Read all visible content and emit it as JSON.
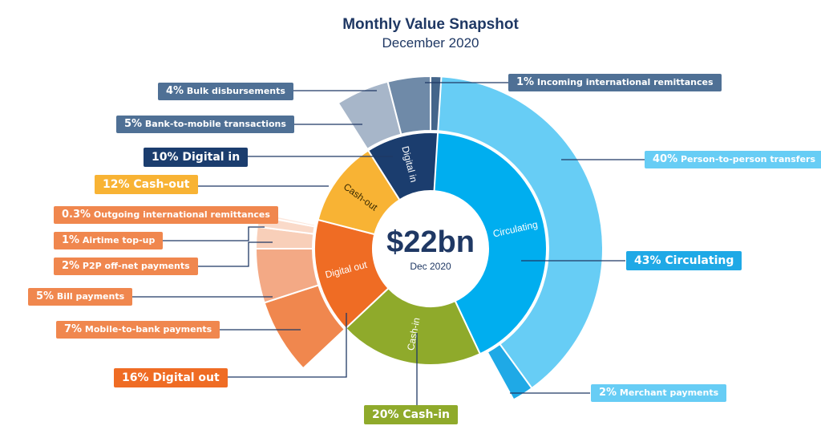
{
  "title": "Monthly Value Snapshot",
  "subtitle": "December 2020",
  "center": {
    "value": "$22bn",
    "caption": "Dec 2020"
  },
  "chart_data": {
    "type": "sunburst",
    "total_label": "$22bn",
    "inner": [
      {
        "name": "Circulating",
        "pct": 43,
        "label": "43% Circulating",
        "color": "#00aeef"
      },
      {
        "name": "Cash-in",
        "pct": 20,
        "label": "20% Cash-in",
        "color": "#8faa2b"
      },
      {
        "name": "Digital out",
        "pct": 16,
        "label": "16% Digital out",
        "color": "#ef6c24"
      },
      {
        "name": "Cash-out",
        "pct": 12,
        "label": "12% Cash-out",
        "color": "#f8b334"
      },
      {
        "name": "Digital in",
        "pct": 10,
        "label": "10% Digital in",
        "color": "#1b3d6e"
      }
    ],
    "outer": [
      {
        "parent": "Circulating",
        "pct_text": "40%",
        "name": "Person-to-person transfers",
        "pct": 40,
        "color": "#67cdf5"
      },
      {
        "parent": "Circulating",
        "pct_text": "2%",
        "name": "Merchant payments",
        "pct": 2,
        "color": "#1fa9e6"
      },
      {
        "parent": "Digital out",
        "pct_text": "7%",
        "name": "Mobile-to-bank payments",
        "pct": 7,
        "color": "#f0874e"
      },
      {
        "parent": "Digital out",
        "pct_text": "5%",
        "name": "Bill payments",
        "pct": 5,
        "color": "#f3a985"
      },
      {
        "parent": "Digital out",
        "pct_text": "2%",
        "name": "P2P off-net payments",
        "pct": 2,
        "color": "#f8cfb9"
      },
      {
        "parent": "Digital out",
        "pct_text": "1%",
        "name": "Airtime top-up",
        "pct": 1,
        "color": "#fadac9"
      },
      {
        "parent": "Digital out",
        "pct_text": "0.3%",
        "name": "Outgoing international remittances",
        "pct": 0.3,
        "color": "#fce7dc"
      },
      {
        "parent": "Digital in",
        "pct_text": "5%",
        "name": "Bank-to-mobile transactions",
        "pct": 5,
        "color": "#a7b6c9"
      },
      {
        "parent": "Digital in",
        "pct_text": "4%",
        "name": "Bulk disbursements",
        "pct": 4,
        "color": "#6f8aa8"
      },
      {
        "parent": "Digital in",
        "pct_text": "1%",
        "name": "Incoming international remittances",
        "pct": 1,
        "color": "#44658a"
      }
    ]
  }
}
